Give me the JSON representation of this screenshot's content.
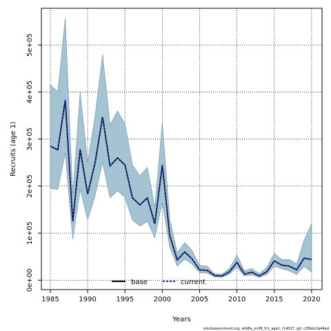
{
  "chart_data": {
    "type": "line",
    "xlabel": "Years",
    "ylabel": "Recruits (age 1)",
    "xlim": [
      1983.8,
      2021.4
    ],
    "ylim": [
      -20000,
      578000
    ],
    "x_ticks": [
      1985,
      1990,
      1995,
      2000,
      2005,
      2010,
      2015,
      2020
    ],
    "x_tick_labels": [
      "1985",
      "1990",
      "1995",
      "2000",
      "2005",
      "2010",
      "2015",
      "2020"
    ],
    "y_ticks": [
      0,
      100000,
      200000,
      300000,
      400000,
      500000
    ],
    "y_tick_labels": [
      "0e+00",
      "1e+05",
      "2e+05",
      "3e+05",
      "4e+05",
      "5e+05"
    ],
    "grid": true,
    "legend_position": "bottom-center",
    "x": [
      1985,
      1986,
      1987,
      1988,
      1989,
      1990,
      1991,
      1992,
      1993,
      1994,
      1995,
      1996,
      1997,
      1998,
      1999,
      2000,
      2001,
      2002,
      2003,
      2004,
      2005,
      2006,
      2007,
      2008,
      2009,
      2010,
      2011,
      2012,
      2013,
      2014,
      2015,
      2016,
      2017,
      2018,
      2019,
      2020
    ],
    "band": {
      "upper": [
        416000,
        400000,
        557000,
        180000,
        400000,
        250000,
        350000,
        480000,
        330000,
        360000,
        332000,
        245000,
        222000,
        240000,
        155000,
        335000,
        130000,
        58000,
        80000,
        63000,
        31000,
        30000,
        14000,
        13000,
        25000,
        53000,
        20000,
        25000,
        14000,
        27000,
        57000,
        44000,
        44000,
        35000,
        85000,
        120000
      ],
      "lower": [
        195000,
        193000,
        270000,
        87000,
        193000,
        128000,
        180000,
        250000,
        175000,
        190000,
        176000,
        128000,
        115000,
        125000,
        90000,
        165000,
        70000,
        30000,
        45000,
        34000,
        16000,
        15000,
        7000,
        6000,
        13000,
        28000,
        9000,
        11000,
        6000,
        12000,
        30000,
        24000,
        20000,
        12000,
        29000,
        17000
      ]
    },
    "series": [
      {
        "name": "base",
        "values": [
          285000,
          277000,
          383000,
          125000,
          278000,
          183000,
          250000,
          347000,
          243000,
          260000,
          245000,
          175000,
          160000,
          175000,
          120000,
          245000,
          95000,
          43000,
          60000,
          45000,
          22000,
          21000,
          10000,
          9000,
          18000,
          38000,
          13000,
          17000,
          9000,
          18000,
          41000,
          32000,
          30000,
          22000,
          47000,
          44000
        ]
      },
      {
        "name": "current",
        "values": [
          285000,
          277000,
          383000,
          125000,
          278000,
          183000,
          250000,
          347000,
          243000,
          260000,
          245000,
          175000,
          160000,
          175000,
          120000,
          245000,
          95000,
          43000,
          60000,
          45000,
          22000,
          21000,
          10000,
          9000,
          18000,
          38000,
          13000,
          17000,
          9000,
          18000,
          41000,
          32000,
          30000,
          22000,
          47000,
          44000
        ]
      }
    ],
    "colors": {
      "band_fill": "#a4c4d4",
      "band_edge": "#6a8ea0",
      "base": "#000000",
      "current": "#1a3aaa",
      "grid": "#000000"
    }
  },
  "footer": "stockassessment.org, whiBa_ov38_fc1_age1, r14017, git: c28bdc2a44ad"
}
